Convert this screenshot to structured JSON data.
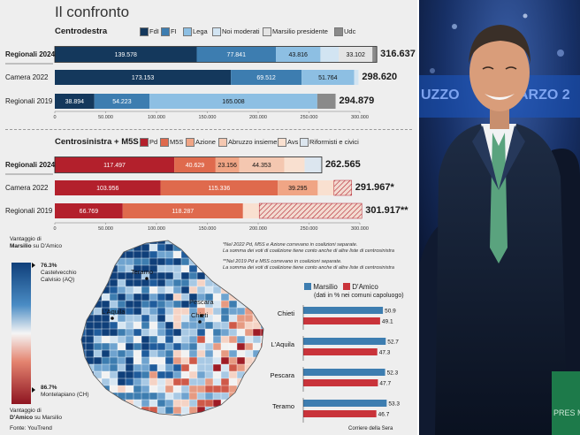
{
  "title": "Il confronto",
  "sections": {
    "cd": {
      "heading": "Centrodestra",
      "series": [
        {
          "name": "FdI",
          "color": "#14385c"
        },
        {
          "name": "FI",
          "color": "#3d7db0"
        },
        {
          "name": "Lega",
          "color": "#8dbfe3"
        },
        {
          "name": "Noi moderati",
          "color": "#d2e4f2"
        },
        {
          "name": "Marsilio presidente",
          "color": "#e4e4e4"
        },
        {
          "name": "Udc",
          "color": "#8a8a8a"
        }
      ],
      "rows": [
        {
          "label": "Regionali 2024",
          "bold": true,
          "total": "316.637",
          "segments": [
            {
              "s": 0,
              "v": 139578,
              "t": "139.578"
            },
            {
              "s": 1,
              "v": 77841,
              "t": "77.841"
            },
            {
              "s": 2,
              "v": 43816,
              "t": "43.816"
            },
            {
              "s": 3,
              "v": 18000,
              "t": ""
            },
            {
              "s": 4,
              "v": 33102,
              "t": "33.102"
            },
            {
              "s": 5,
              "v": 4300,
              "t": ""
            }
          ]
        },
        {
          "label": "Camera 2022",
          "bold": false,
          "total": "298.620",
          "segments": [
            {
              "s": 0,
              "v": 173153,
              "t": "173.153"
            },
            {
              "s": 1,
              "v": 69512,
              "t": "69.512"
            },
            {
              "s": 2,
              "v": 51764,
              "t": "51.764"
            },
            {
              "s": 3,
              "v": 4191,
              "t": ""
            }
          ]
        },
        {
          "label": "Regionali 2019",
          "bold": false,
          "total": "294.879",
          "segments": [
            {
              "s": 0,
              "v": 38894,
              "t": "38.894"
            },
            {
              "s": 1,
              "v": 54223,
              "t": "54.223"
            },
            {
              "s": 2,
              "v": 165008,
              "t": "165.008"
            },
            {
              "s": 5,
              "v": 18000,
              "t": ""
            }
          ]
        }
      ],
      "ticks": [
        "0",
        "50.000",
        "100.000",
        "150.000",
        "200.000",
        "250.000",
        "300.000"
      ]
    },
    "cs": {
      "heading": "Centrosinistra + M5S",
      "series": [
        {
          "name": "Pd",
          "color": "#b3202c"
        },
        {
          "name": "M5S",
          "color": "#df6a4d"
        },
        {
          "name": "Azione",
          "color": "#f0a585"
        },
        {
          "name": "Abruzzo insieme",
          "color": "#f4c7b0"
        },
        {
          "name": "Avs",
          "color": "#f9e0d0"
        },
        {
          "name": "Riformisti e civici",
          "color": "#dce6ef"
        }
      ],
      "rows": [
        {
          "label": "Regionali 2024",
          "bold": true,
          "total": "262.565",
          "segments": [
            {
              "s": 0,
              "v": 117497,
              "t": "117.497"
            },
            {
              "s": 1,
              "v": 40629,
              "t": "40.629"
            },
            {
              "s": 2,
              "v": 23156,
              "t": "23.156"
            },
            {
              "s": 3,
              "v": 44353,
              "t": "44.353"
            },
            {
              "s": 4,
              "v": 20000,
              "t": ""
            },
            {
              "s": 5,
              "v": 16930,
              "t": ""
            }
          ]
        },
        {
          "label": "Camera 2022",
          "bold": false,
          "total": "291.967*",
          "segments": [
            {
              "s": 0,
              "v": 103956,
              "t": "103.956"
            },
            {
              "s": 1,
              "v": 115336,
              "t": "115.336"
            },
            {
              "s": 2,
              "v": 39295,
              "t": "39.295"
            },
            {
              "s": 4,
              "v": 16000,
              "t": ""
            },
            {
              "s": -1,
              "v": 17380,
              "t": ""
            }
          ]
        },
        {
          "label": "Regionali 2019",
          "bold": false,
          "total": "301.917**",
          "segments": [
            {
              "s": 0,
              "v": 66769,
              "t": "66.769"
            },
            {
              "s": 1,
              "v": 118287,
              "t": "118.287"
            },
            {
              "s": 4,
              "v": 16000,
              "t": ""
            },
            {
              "s": -1,
              "v": 100861,
              "t": ""
            }
          ]
        }
      ],
      "ticks": [
        "0",
        "50.000",
        "100.000",
        "150.000",
        "200.000",
        "250.000",
        "300.000"
      ]
    }
  },
  "notes": {
    "n1a": "*Nel 2022 Pd, M5S e Azione correvano in coalizioni separate.",
    "n1b": "La somma dei voti di coalizione tiene conto anche di altre liste di centrosinistra",
    "n2a": "**Nel 2019 Pd e M5S correvano in coalizioni separate.",
    "n2b": "La somma dei voti di coalizione tiene conto anche di altre liste di centrosinistra"
  },
  "map": {
    "top_label_1": "Vantaggio di",
    "top_label_2b": "Marsilio",
    "top_label_2": " su D'Amico",
    "top_pct": "76.3%",
    "top_place_1": "Castelvecchio",
    "top_place_2": "Calvisio (AQ)",
    "bot_pct": "86.7%",
    "bot_place": "Montelapiano (CH)",
    "bot_label_1": "Vantaggio di",
    "bot_label_2b": "D'Amico",
    "bot_label_2": " su Marsilio",
    "cities": [
      "Teramo",
      "Pescara",
      "L'Aquila",
      "Chieti"
    ]
  },
  "chart_data": [
    {
      "type": "bar",
      "title": "Centrodestra",
      "categories": [
        "Regionali 2024",
        "Camera 2022",
        "Regionali 2019"
      ],
      "series": [
        {
          "name": "FdI",
          "values": [
            139578,
            173153,
            38894
          ]
        },
        {
          "name": "FI",
          "values": [
            77841,
            69512,
            54223
          ]
        },
        {
          "name": "Lega",
          "values": [
            43816,
            51764,
            165008
          ]
        },
        {
          "name": "Marsilio presidente",
          "values": [
            33102,
            null,
            null
          ]
        }
      ],
      "totals": [
        316637,
        298620,
        294879
      ],
      "xlim": [
        0,
        300000
      ]
    },
    {
      "type": "bar",
      "title": "Centrosinistra + M5S",
      "categories": [
        "Regionali 2024",
        "Camera 2022",
        "Regionali 2019"
      ],
      "series": [
        {
          "name": "Pd",
          "values": [
            117497,
            103956,
            66769
          ]
        },
        {
          "name": "M5S",
          "values": [
            40629,
            115336,
            118287
          ]
        },
        {
          "name": "Azione",
          "values": [
            23156,
            39295,
            null
          ]
        },
        {
          "name": "Abruzzo insieme",
          "values": [
            44353,
            null,
            null
          ]
        }
      ],
      "totals": [
        262565,
        291967,
        301917
      ],
      "xlim": [
        0,
        300000
      ]
    },
    {
      "type": "bar",
      "title": "",
      "legend_title": "(dati in % nei comuni capoluogo)",
      "categories": [
        "Chieti",
        "L'Aquila",
        "Pescara",
        "Teramo"
      ],
      "series": [
        {
          "name": "Marsilio",
          "color": "#3d7db0",
          "values": [
            50.9,
            52.7,
            52.3,
            53.3
          ]
        },
        {
          "name": "D'Amico",
          "color": "#c9333a",
          "values": [
            49.1,
            47.3,
            47.7,
            46.7
          ]
        }
      ],
      "value_labels": [
        [
          "50.9",
          "49.1"
        ],
        [
          "52.7",
          "47.3"
        ],
        [
          "52.3",
          "47.7"
        ],
        [
          "53.3",
          "46.7"
        ]
      ]
    }
  ],
  "capoluoghi": {
    "legend_note": "(dati in % nei comuni capoluogo)",
    "marsilio_label": "Marsilio",
    "damico_label": "D'Amico"
  },
  "fonte": "Fonte: YouTrend",
  "credit": "Corriere della Sera",
  "photo": {
    "banner_1": "UZZO",
    "banner_2": "ARZO 2",
    "sign": "PRES MAI"
  }
}
